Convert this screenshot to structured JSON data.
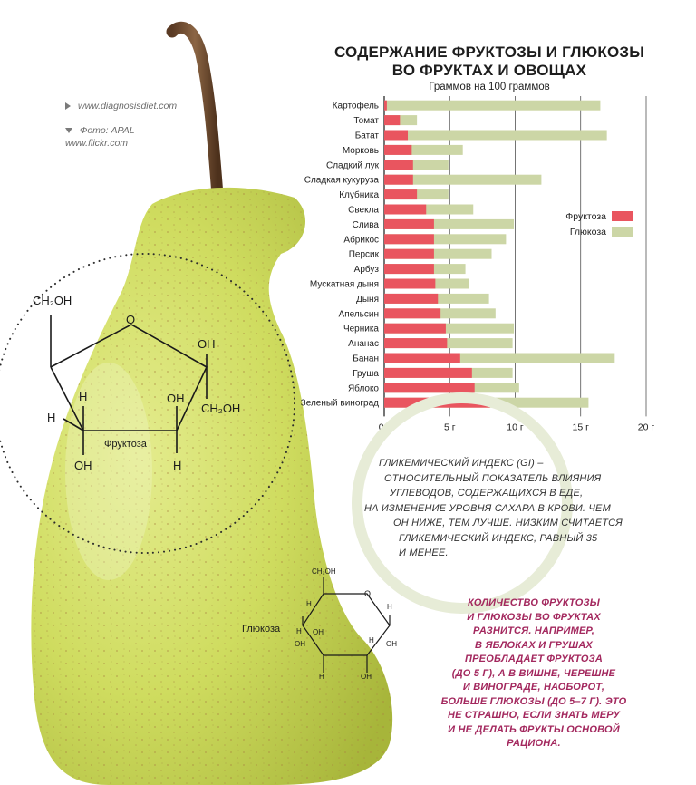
{
  "credits": {
    "site": "www.diagnosisdiet.com",
    "photo_line1": "Фото: APAL",
    "photo_line2": "www.flickr.com"
  },
  "title_line1": "СОДЕРЖАНИЕ ФРУКТОЗЫ И ГЛЮКОЗЫ",
  "title_line2": "ВО ФРУКТАХ И ОВОЩАХ",
  "subtitle": "Граммов на 100 граммов",
  "chart_data": {
    "type": "bar",
    "orientation": "horizontal",
    "stacked": false,
    "categories": [
      "Картофель",
      "Томат",
      "Батат",
      "Морковь",
      "Сладкий лук",
      "Сладкая кукуруза",
      "Клубника",
      "Свекла",
      "Слива",
      "Абрикос",
      "Персик",
      "Арбуз",
      "Мускатная дыня",
      "Дыня",
      "Апельсин",
      "Черника",
      "Ананас",
      "Банан",
      "Груша",
      "Яблоко",
      "Зеленый виноград"
    ],
    "series": [
      {
        "name": "Фруктоза",
        "color": "#e9555f",
        "values": [
          0.2,
          1.2,
          1.8,
          2.1,
          2.2,
          2.2,
          2.5,
          3.2,
          3.8,
          3.8,
          3.8,
          3.8,
          3.9,
          4.1,
          4.3,
          4.7,
          4.8,
          5.8,
          6.7,
          6.9,
          8.1
        ]
      },
      {
        "name": "Глюкоза",
        "color": "#ccd6a6",
        "values": [
          16.5,
          2.5,
          17.0,
          6.0,
          4.9,
          12.0,
          4.9,
          6.8,
          9.9,
          9.3,
          8.2,
          6.2,
          6.5,
          8.0,
          8.5,
          9.9,
          9.8,
          17.6,
          9.8,
          10.3,
          15.6
        ]
      }
    ],
    "xticks": [
      "0 г",
      "5 г",
      "10 г",
      "15 г",
      "20 г"
    ],
    "xlim": [
      0,
      20
    ],
    "grid": true,
    "legend_position": "right"
  },
  "gi_lines": [
    "ГЛИКЕМИЧЕСКИЙ ИНДЕКС (GI) –",
    "ОТНОСИТЕЛЬНЫЙ ПОКАЗАТЕЛЬ ВЛИЯНИЯ",
    "УГЛЕВОДОВ, СОДЕРЖАЩИХСЯ В ЕДЕ,",
    "НА ИЗМЕНЕНИЕ УРОВНЯ САХАРА В КРОВИ. ЧЕМ",
    "ОН НИЖЕ, ТЕМ ЛУЧШЕ. НИЗКИМ СЧИТАЕТСЯ",
    "ГЛИКЕМИЧЕСКИЙ ИНДЕКС, РАВНЫЙ 35",
    "И МЕНЕЕ."
  ],
  "pink_lines": [
    "КОЛИЧЕСТВО ФРУКТОЗЫ",
    "И ГЛЮКОЗЫ ВО ФРУКТАХ",
    "РАЗНИТСЯ. НАПРИМЕР,",
    "В ЯБЛОКАХ И ГРУШАХ",
    "ПРЕОБЛАДАЕТ ФРУКТОЗА",
    "(ДО 5 Г), А В ВИШНЕ, ЧЕРЕШНЕ",
    "И ВИНОГРАДЕ, НАОБОРОТ,",
    "БОЛЬШЕ ГЛЮКОЗЫ (ДО 5–7 Г). ЭТО",
    "НЕ СТРАШНО, ЕСЛИ ЗНАТЬ МЕРУ",
    "И НЕ ДЕЛАТЬ ФРУКТЫ ОСНОВОЙ",
    "РАЦИОНА."
  ],
  "fructose_diagram": {
    "label": "Фруктоза",
    "ch2oh_top": "CH₂OH",
    "o": "O",
    "oh_right": "OH",
    "oh_mid": "OH",
    "ch2oh_right": "CH₂OH",
    "h_upper": "H",
    "h_left": "H",
    "oh_bottom_left": "OH",
    "h_bottom_right": "H"
  },
  "glucose_diagram": {
    "label": "Глюкоза",
    "ch2oh": "CH₂OH",
    "h": "H",
    "oh": "OH",
    "o": "O"
  }
}
